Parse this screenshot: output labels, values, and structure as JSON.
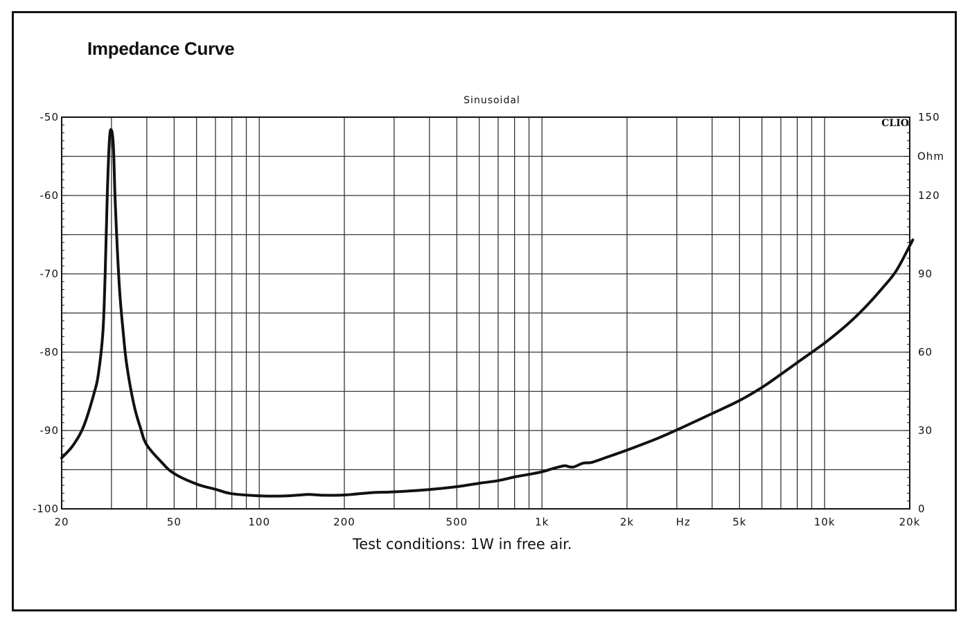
{
  "title": "Impedance Curve",
  "caption": "Test conditions: 1W in free air.",
  "chart_data": {
    "type": "line",
    "title": "Impedance Curve",
    "subtitle": "Sinusoidal",
    "brand": "CLIO",
    "x_scale": "log",
    "xlim": [
      20,
      20000
    ],
    "x_ticks": [
      {
        "value": 20,
        "label": "20"
      },
      {
        "value": 50,
        "label": "50"
      },
      {
        "value": 100,
        "label": "100"
      },
      {
        "value": 200,
        "label": "200"
      },
      {
        "value": 500,
        "label": "500"
      },
      {
        "value": 1000,
        "label": "1k"
      },
      {
        "value": 2000,
        "label": "2k"
      },
      {
        "value": 5000,
        "label": "5k"
      },
      {
        "value": 10000,
        "label": "10k"
      },
      {
        "value": 20000,
        "label": "20k"
      }
    ],
    "x_unit_label": "Hz",
    "x_unit_position": 3162,
    "left_axis": {
      "range": [
        -100,
        -50
      ],
      "ticks": [
        {
          "value": -50,
          "label": "-50"
        },
        {
          "value": -60,
          "label": "-60"
        },
        {
          "value": -70,
          "label": "-70"
        },
        {
          "value": -80,
          "label": "-80"
        },
        {
          "value": -90,
          "label": "-90"
        },
        {
          "value": -100,
          "label": "-100"
        }
      ]
    },
    "right_axis": {
      "range": [
        0,
        150
      ],
      "unit": "Ohm",
      "ticks": [
        {
          "value": 150,
          "label": "150"
        },
        {
          "value": 120,
          "label": "120"
        },
        {
          "value": 90,
          "label": "90"
        },
        {
          "value": 60,
          "label": "60"
        },
        {
          "value": 30,
          "label": "30"
        },
        {
          "value": 0,
          "label": "0"
        }
      ]
    },
    "grid": true,
    "series": [
      {
        "axis": "right",
        "points": [
          [
            20,
            19.5
          ],
          [
            22,
            24.5
          ],
          [
            24,
            32
          ],
          [
            26,
            44
          ],
          [
            27,
            52
          ],
          [
            28,
            68
          ],
          [
            28.5,
            90
          ],
          [
            29,
            120
          ],
          [
            29.5,
            141
          ],
          [
            30,
            145
          ],
          [
            30.5,
            138
          ],
          [
            31,
            115
          ],
          [
            32,
            85
          ],
          [
            33,
            68
          ],
          [
            34,
            55
          ],
          [
            36,
            40
          ],
          [
            38,
            31
          ],
          [
            40,
            24.5
          ],
          [
            45,
            18
          ],
          [
            50,
            13.5
          ],
          [
            60,
            9.5
          ],
          [
            70,
            7.5
          ],
          [
            80,
            5.8
          ],
          [
            100,
            5.0
          ],
          [
            120,
            4.9
          ],
          [
            140,
            5.3
          ],
          [
            150,
            5.5
          ],
          [
            170,
            5.2
          ],
          [
            200,
            5.3
          ],
          [
            250,
            6.2
          ],
          [
            300,
            6.5
          ],
          [
            400,
            7.4
          ],
          [
            500,
            8.5
          ],
          [
            600,
            9.8
          ],
          [
            700,
            10.8
          ],
          [
            800,
            12.2
          ],
          [
            900,
            13.2
          ],
          [
            1000,
            14.2
          ],
          [
            1100,
            15.5
          ],
          [
            1200,
            16.5
          ],
          [
            1250,
            16.1
          ],
          [
            1300,
            16.1
          ],
          [
            1400,
            17.5
          ],
          [
            1500,
            17.8
          ],
          [
            1700,
            19.8
          ],
          [
            2000,
            22.5
          ],
          [
            2500,
            26.5
          ],
          [
            3000,
            30.2
          ],
          [
            4000,
            36.5
          ],
          [
            5000,
            41.5
          ],
          [
            6000,
            46.5
          ],
          [
            7000,
            51.5
          ],
          [
            8000,
            56
          ],
          [
            10000,
            63.5
          ],
          [
            12000,
            70.5
          ],
          [
            14000,
            77.5
          ],
          [
            16000,
            84.5
          ],
          [
            18000,
            91.5
          ],
          [
            20500,
            103
          ]
        ]
      }
    ]
  }
}
